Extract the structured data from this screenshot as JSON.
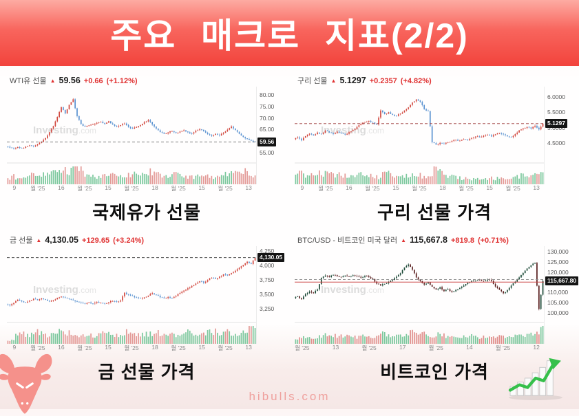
{
  "page": {
    "title": "주요 매크로 지표(2/2)",
    "footer_domain": "hibulls.com"
  },
  "colors": {
    "banner_red": "#f2433c",
    "change_red": "#e03232",
    "badge_bg": "#141414"
  },
  "chart_data": [
    {
      "id": "wti",
      "type": "candlestick",
      "name": "WTI유 선물",
      "arrow": "▲",
      "last_price": "59.56",
      "change": "+0.66",
      "change_pct": "(+1.12%)",
      "caption": "국제유가 선물",
      "watermark": "Investing.com",
      "legend_position": "none",
      "grid": false,
      "ylim": [
        52.5,
        82.5
      ],
      "y_ticks": [
        {
          "label": "80.00",
          "value": 80
        },
        {
          "label": "75.00",
          "value": 75
        },
        {
          "label": "70.00",
          "value": 70
        },
        {
          "label": "65.00",
          "value": 65
        },
        {
          "label": "55.00",
          "value": 55
        }
      ],
      "badge": {
        "label": "59.56",
        "value": 59.56
      },
      "price_lines": [
        {
          "value": 59.56,
          "color": "#666666",
          "dashed": true
        }
      ],
      "x_ticks": [
        "9",
        "월 '25",
        "16",
        "월 '25",
        "15",
        "월 '25",
        "18",
        "월 '25",
        "15",
        "월 '25",
        "13"
      ],
      "up_color": "#d24a41",
      "down_color": "#5b93d1",
      "vol_up": "#7cc89d",
      "vol_down": "#e39a97",
      "close_path": [
        57.6,
        57.1,
        56.7,
        57.3,
        56.9,
        57.5,
        58.1,
        57.7,
        58.5,
        59.6,
        61.2,
        63.8,
        66.5,
        70.5,
        74.8,
        72.0,
        75.8,
        78.2,
        70.8,
        67.4,
        66.2,
        66.8,
        67.2,
        67.9,
        68.4,
        67.5,
        68.6,
        67.1,
        66.3,
        66.9,
        67.6,
        66.1,
        65.3,
        66.0,
        66.9,
        68.3,
        69.1,
        67.2,
        65.4,
        63.9,
        63.1,
        63.7,
        64.3,
        63.5,
        64.1,
        64.7,
        63.8,
        63.2,
        64.5,
        65.1,
        64.2,
        63.0,
        62.3,
        63.1,
        62.5,
        63.5,
        64.9,
        66.3,
        64.7,
        63.1,
        61.7,
        60.9,
        60.1,
        59.56
      ],
      "volume": [
        0.3,
        0.5,
        0.35,
        0.3,
        0.4,
        0.5,
        0.6,
        0.45,
        0.5,
        0.55,
        0.6,
        0.7,
        0.8,
        0.9,
        1.0,
        0.7,
        0.85,
        0.95,
        0.9,
        0.6,
        0.5,
        0.45,
        0.4,
        0.5,
        0.45,
        0.5,
        0.55,
        0.5,
        0.45,
        0.4,
        0.5,
        0.45,
        0.55,
        0.5,
        0.6,
        0.65,
        0.7,
        0.6,
        0.55,
        0.5,
        0.45,
        0.5,
        0.55,
        0.5,
        0.45,
        0.4,
        0.45,
        0.4,
        0.5,
        0.55,
        0.5,
        0.45,
        0.4,
        0.45,
        0.5,
        0.55,
        0.6,
        0.65,
        0.6,
        0.55,
        0.7,
        0.6,
        0.5,
        0.45
      ]
    },
    {
      "id": "copper",
      "type": "candlestick",
      "name": "구리 선물",
      "arrow": "▲",
      "last_price": "5.1297",
      "change": "+0.2357",
      "change_pct": "(+4.82%)",
      "caption": "구리 선물 가격",
      "watermark": "Investing.com",
      "legend_position": "none",
      "grid": false,
      "ylim": [
        4.0,
        6.25
      ],
      "y_ticks": [
        {
          "label": "6.0000",
          "value": 6.0
        },
        {
          "label": "5.5000",
          "value": 5.5
        },
        {
          "label": "5.0000",
          "value": 5.0
        },
        {
          "label": "4.5000",
          "value": 4.5
        }
      ],
      "badge": {
        "label": "5.1297",
        "value": 5.1297
      },
      "price_lines": [
        {
          "value": 5.1297,
          "color": "#9e3a3a",
          "dashed": true
        }
      ],
      "x_ticks": [
        "9",
        "월 '25",
        "16",
        "월 '25",
        "15",
        "월 '25",
        "18",
        "월 '25",
        "15",
        "월 '25",
        "13"
      ],
      "up_color": "#d24a41",
      "down_color": "#5b93d1",
      "vol_up": "#7cc89d",
      "vol_down": "#e39a97",
      "close_path": [
        4.62,
        4.68,
        4.58,
        4.72,
        4.8,
        4.74,
        4.84,
        4.79,
        4.9,
        4.84,
        4.79,
        4.87,
        4.82,
        4.77,
        4.85,
        4.92,
        5.02,
        5.12,
        5.18,
        5.22,
        5.17,
        5.1,
        5.56,
        5.44,
        5.5,
        5.42,
        5.38,
        5.46,
        5.56,
        5.66,
        5.82,
        5.92,
        5.84,
        5.6,
        5.54,
        4.52,
        4.44,
        4.5,
        4.47,
        4.52,
        4.56,
        4.6,
        4.57,
        4.62,
        4.59,
        4.66,
        4.71,
        4.68,
        4.73,
        4.76,
        4.71,
        4.78,
        4.83,
        4.78,
        4.71,
        4.69,
        4.79,
        4.91,
        4.97,
        5.02,
        4.97,
        5.06,
        4.94,
        5.13
      ],
      "volume": [
        0.5,
        0.6,
        0.5,
        0.55,
        0.6,
        0.55,
        0.65,
        0.6,
        0.55,
        0.6,
        0.5,
        0.55,
        0.5,
        0.45,
        0.5,
        0.55,
        0.6,
        0.5,
        0.45,
        0.5,
        0.4,
        0.35,
        0.9,
        0.7,
        0.6,
        0.5,
        0.45,
        0.4,
        0.45,
        0.5,
        0.55,
        0.5,
        0.45,
        0.4,
        0.5,
        1.0,
        0.8,
        0.6,
        0.5,
        0.45,
        0.4,
        0.35,
        0.3,
        0.35,
        0.3,
        0.35,
        0.3,
        0.25,
        0.3,
        0.35,
        0.3,
        0.35,
        0.3,
        0.25,
        0.3,
        0.35,
        0.4,
        0.5,
        0.6,
        0.55,
        0.6,
        0.7,
        0.8,
        0.75
      ]
    },
    {
      "id": "gold",
      "type": "candlestick",
      "name": "금 선물",
      "arrow": "▲",
      "last_price": "4,130.05",
      "change": "+129.65",
      "change_pct": "(+3.24%)",
      "caption": "금 선물 가격",
      "watermark": "Investing.com",
      "legend_position": "none",
      "grid": false,
      "ylim": [
        3100,
        4280
      ],
      "y_ticks": [
        {
          "label": "4,250",
          "value": 4250
        },
        {
          "label": "4,000",
          "value": 4000
        },
        {
          "label": "3,750",
          "value": 3750
        },
        {
          "label": "3,500",
          "value": 3500
        },
        {
          "label": "3,250",
          "value": 3250
        }
      ],
      "badge": {
        "label": "4,130.05",
        "value": 4130.05
      },
      "price_lines": [
        {
          "value": 4130.05,
          "color": "#333333",
          "dashed": true
        }
      ],
      "x_ticks": [
        "9",
        "월 '25",
        "16",
        "월 '25",
        "15",
        "월 '25",
        "18",
        "월 '25",
        "15",
        "월 '25",
        "13"
      ],
      "up_color": "#d24a41",
      "down_color": "#5b93d1",
      "vol_up": "#7cc89d",
      "vol_down": "#e39a97",
      "close_path": [
        3330,
        3310,
        3355,
        3405,
        3380,
        3360,
        3392,
        3425,
        3400,
        3432,
        3408,
        3378,
        3402,
        3442,
        3462,
        3440,
        3422,
        3398,
        3375,
        3355,
        3338,
        3362,
        3345,
        3372,
        3355,
        3340,
        3365,
        3385,
        3372,
        3395,
        3528,
        3495,
        3470,
        3448,
        3432,
        3448,
        3478,
        3520,
        3490,
        3450,
        3430,
        3455,
        3440,
        3470,
        3525,
        3565,
        3605,
        3645,
        3685,
        3725,
        3700,
        3745,
        3785,
        3765,
        3805,
        3845,
        3825,
        3865,
        3905,
        3955,
        4005,
        4060,
        4020,
        4130
      ],
      "volume": [
        0.15,
        0.2,
        0.5,
        0.6,
        0.55,
        0.5,
        0.6,
        0.65,
        0.55,
        0.6,
        0.5,
        0.55,
        0.6,
        0.65,
        0.7,
        0.6,
        0.55,
        0.5,
        0.45,
        0.5,
        0.55,
        0.5,
        0.45,
        0.5,
        0.55,
        0.6,
        0.55,
        0.5,
        0.45,
        0.5,
        0.7,
        0.65,
        0.6,
        0.55,
        0.5,
        0.55,
        0.6,
        0.65,
        0.6,
        0.55,
        0.5,
        0.55,
        0.5,
        0.55,
        0.6,
        0.65,
        0.7,
        0.65,
        0.6,
        0.55,
        0.6,
        0.65,
        0.7,
        0.6,
        0.65,
        0.7,
        0.65,
        0.6,
        0.55,
        0.6,
        0.8,
        0.9,
        1.0,
        0.85
      ]
    },
    {
      "id": "btc",
      "type": "candlestick",
      "name": "BTC/USD - 비트코인 미국 달러",
      "arrow": "▲",
      "last_price": "115,667.8",
      "change": "+819.8",
      "change_pct": "(+0.71%)",
      "caption": "비트코인 가격",
      "watermark": "Investing.com",
      "legend_position": "none",
      "grid": false,
      "ylim": [
        97500,
        131500
      ],
      "y_ticks": [
        {
          "label": "130,000",
          "value": 130000
        },
        {
          "label": "125,000",
          "value": 125000
        },
        {
          "label": "120,000",
          "value": 120000
        },
        {
          "label": "110,000",
          "value": 110000
        },
        {
          "label": "105,000",
          "value": 105000
        },
        {
          "label": "100,000",
          "value": 100000
        }
      ],
      "badge": {
        "label": "115,667.80",
        "value": 115667.8
      },
      "price_lines": [
        {
          "value": 116400,
          "color": "#8a8a8a",
          "dashed": true
        },
        {
          "value": 115100,
          "color": "#cc4444",
          "dashed": false
        }
      ],
      "x_ticks": [
        "월 '25",
        "13",
        "월 '25",
        "17",
        "월 '25",
        "14",
        "월 '25",
        "12"
      ],
      "up_color": "#1d4a38",
      "down_color": "#5a1f1f",
      "vol_up": "#7cc89d",
      "vol_down": "#e08f8c",
      "close_path": [
        107200,
        108100,
        106600,
        109200,
        110400,
        109600,
        111500,
        117200,
        118300,
        117600,
        118600,
        118100,
        117500,
        118300,
        117800,
        118500,
        118000,
        117300,
        118100,
        117500,
        116600,
        114300,
        113400,
        114200,
        115100,
        116200,
        117800,
        119500,
        122300,
        123800,
        121200,
        117400,
        115600,
        113900,
        115000,
        112800,
        111400,
        112600,
        110600,
        111600,
        110200,
        111200,
        112200,
        113400,
        114800,
        115600,
        115900,
        116100,
        115500,
        116300,
        115700,
        112900,
        111300,
        109600,
        111200,
        113400,
        115300,
        117400,
        119600,
        121800,
        123400,
        124600,
        101800,
        115667.8
      ],
      "volume": [
        0.25,
        0.3,
        0.35,
        0.3,
        0.35,
        0.3,
        0.4,
        0.5,
        0.45,
        0.4,
        0.45,
        0.5,
        0.45,
        0.4,
        0.35,
        0.4,
        0.45,
        0.4,
        0.35,
        0.4,
        0.45,
        0.5,
        0.55,
        0.5,
        0.45,
        0.4,
        0.45,
        0.5,
        0.55,
        0.6,
        0.55,
        0.5,
        0.55,
        0.5,
        0.45,
        0.5,
        0.55,
        0.5,
        0.45,
        0.4,
        0.35,
        0.4,
        0.45,
        0.4,
        0.45,
        0.4,
        0.35,
        0.4,
        0.35,
        0.4,
        0.35,
        0.4,
        0.45,
        0.4,
        0.35,
        0.4,
        0.45,
        0.4,
        0.45,
        0.5,
        0.55,
        0.6,
        1.0,
        0.8
      ]
    }
  ]
}
